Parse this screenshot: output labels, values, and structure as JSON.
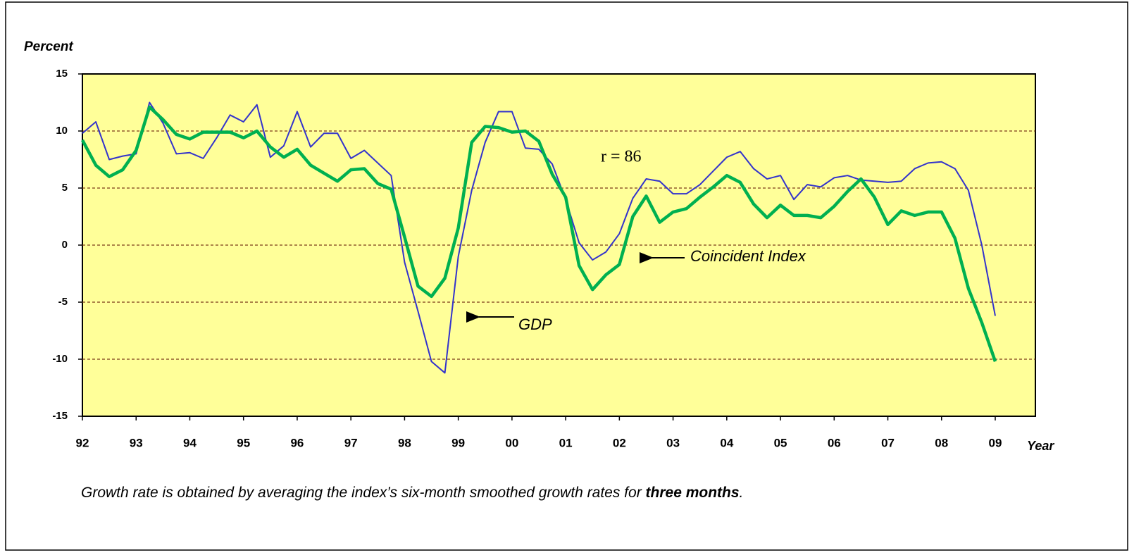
{
  "chart_data": {
    "type": "line",
    "y_label": "Percent",
    "x_label": "Year",
    "annotations": [
      "r = 86"
    ],
    "note": [
      "Growth rate is obtained by averaging the index’s six-month smoothed growth rates for ",
      "three months",
      "."
    ],
    "categories": [
      "92",
      null,
      null,
      null,
      "93",
      null,
      null,
      null,
      "94",
      null,
      null,
      null,
      "95",
      null,
      null,
      null,
      "96",
      null,
      null,
      null,
      "97",
      null,
      null,
      null,
      "98",
      null,
      null,
      null,
      "99",
      null,
      null,
      null,
      "00",
      null,
      null,
      null,
      "01",
      null,
      null,
      null,
      "02",
      null,
      null,
      null,
      "03",
      null,
      null,
      null,
      "04",
      null,
      null,
      null,
      "05",
      null,
      null,
      null,
      "06",
      null,
      null,
      null,
      "07",
      null,
      null,
      null,
      "08",
      null,
      null,
      null,
      "09"
    ],
    "series": [
      {
        "name": "GDP",
        "color": "#3333cc",
        "width": 2,
        "values": [
          9.8,
          10.8,
          7.5,
          7.8,
          8.0,
          12.5,
          10.7,
          8.0,
          8.1,
          7.6,
          9.4,
          11.4,
          10.8,
          12.3,
          7.7,
          8.7,
          11.7,
          8.6,
          9.8,
          9.8,
          7.6,
          8.3,
          7.2,
          6.1,
          -1.5,
          -5.8,
          -10.2,
          -11.2,
          -1.0,
          4.8,
          9.0,
          11.7,
          11.7,
          8.5,
          8.4,
          7.1,
          4.0,
          0.2,
          -1.3,
          -0.6,
          1.0,
          4.1,
          5.8,
          5.6,
          4.5,
          4.5,
          5.3,
          6.5,
          7.7,
          8.2,
          6.7,
          5.8,
          6.1,
          4.0,
          5.3,
          5.1,
          5.9,
          6.1,
          5.7,
          5.6,
          5.5,
          5.6,
          6.7,
          7.2,
          7.3,
          6.7,
          4.8,
          0.0,
          -6.2
        ]
      },
      {
        "name": "Coincident Index",
        "color": "#00b050",
        "width": 4.5,
        "values": [
          9.2,
          7.0,
          6.0,
          6.6,
          8.3,
          12.1,
          11.0,
          9.7,
          9.3,
          9.9,
          9.9,
          9.9,
          9.4,
          10.0,
          8.6,
          7.7,
          8.4,
          7.0,
          6.3,
          5.6,
          6.6,
          6.7,
          5.4,
          4.9,
          0.7,
          -3.6,
          -4.5,
          -2.9,
          1.5,
          9.0,
          10.4,
          10.3,
          9.9,
          10.0,
          9.1,
          6.2,
          4.2,
          -1.8,
          -3.9,
          -2.6,
          -1.7,
          2.5,
          4.3,
          2.0,
          2.9,
          3.2,
          4.2,
          5.1,
          6.1,
          5.5,
          3.6,
          2.4,
          3.5,
          2.6,
          2.6,
          2.4,
          3.4,
          4.7,
          5.8,
          4.2,
          1.8,
          3.0,
          2.6,
          2.9,
          2.9,
          0.6,
          -3.8,
          -6.8,
          -10.2
        ]
      }
    ],
    "ylim": [
      -15,
      15
    ],
    "yticks": [
      -15,
      -10,
      -5,
      0,
      5,
      10,
      15
    ],
    "grid": true
  }
}
